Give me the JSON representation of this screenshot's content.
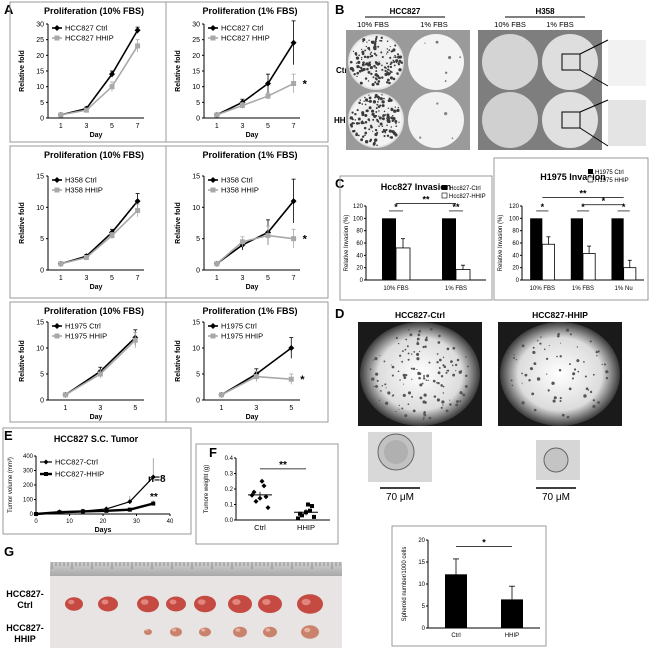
{
  "panels": {
    "A": "A",
    "B": "B",
    "C": "C",
    "D": "D",
    "E": "E",
    "F": "F",
    "G": "G"
  },
  "prolif": {
    "ylabel": "Relative fold",
    "xlabel": "Day",
    "star": "*",
    "charts": [
      {
        "title": "Proliferation (10% FBS)",
        "ticksX": [
          "1",
          "3",
          "5",
          "7"
        ],
        "ticksY": [
          "0",
          "5",
          "10",
          "15",
          "20",
          "25",
          "30"
        ],
        "ymax": 30,
        "xmax": 7,
        "s1": "HCC827 Ctrl",
        "s2": "HCC827 HHIP",
        "x": [
          1,
          3,
          5,
          7
        ],
        "v1": [
          1,
          3,
          14,
          28
        ],
        "v2": [
          1,
          2.5,
          10,
          23
        ],
        "e1": [
          0.3,
          0.5,
          1,
          1
        ],
        "e2": [
          0.3,
          0.5,
          1.5,
          2
        ],
        "star": false
      },
      {
        "title": "Proliferation (1% FBS)",
        "ticksX": [
          "1",
          "3",
          "5",
          "7"
        ],
        "ticksY": [
          "0",
          "5",
          "10",
          "15",
          "20",
          "25",
          "30"
        ],
        "ymax": 30,
        "xmax": 7,
        "s1": "HCC827 Ctrl",
        "s2": "HCC827 HHIP",
        "x": [
          1,
          3,
          5,
          7
        ],
        "v1": [
          1,
          5,
          11,
          24
        ],
        "v2": [
          1,
          4,
          7,
          11
        ],
        "e1": [
          0.3,
          1,
          3,
          7
        ],
        "e2": [
          0.3,
          1,
          1,
          3
        ],
        "star": true
      },
      {
        "title": "Proliferation (10% FBS)",
        "ticksX": [
          "1",
          "3",
          "5",
          "7"
        ],
        "ticksY": [
          "0",
          "5",
          "10",
          "15"
        ],
        "ymax": 15,
        "xmax": 7,
        "s1": "H358 Ctrl",
        "s2": "H358 HHIP",
        "x": [
          1,
          3,
          5,
          7
        ],
        "v1": [
          1,
          2.2,
          6,
          11
        ],
        "v2": [
          1,
          2,
          5.5,
          9.5
        ],
        "e1": [
          0.2,
          0.3,
          0.5,
          1.2
        ],
        "e2": [
          0.2,
          0.3,
          0.5,
          1
        ],
        "star": false
      },
      {
        "title": "Proliferation (1% FBS)",
        "ticksX": [
          "1",
          "3",
          "5",
          "7"
        ],
        "ticksY": [
          "0",
          "5",
          "10",
          "15"
        ],
        "ymax": 15,
        "xmax": 7,
        "s1": "H358 Ctrl",
        "s2": "H358 HHIP",
        "x": [
          1,
          3,
          5,
          7
        ],
        "v1": [
          1,
          4,
          6,
          11
        ],
        "v2": [
          1,
          4.5,
          5.5,
          5
        ],
        "e1": [
          0.2,
          0.8,
          2,
          3.5
        ],
        "e2": [
          0.2,
          0.8,
          1.5,
          1.5
        ],
        "star": true
      },
      {
        "title": "Proliferation (10% FBS)",
        "ticksX": [
          "1",
          "3",
          "5"
        ],
        "ticksY": [
          "0",
          "5",
          "10",
          "15"
        ],
        "ymax": 15,
        "xmax": 5,
        "s1": "H1975 Ctrl",
        "s2": "H1975 HHIP",
        "x": [
          1,
          3,
          5
        ],
        "v1": [
          1,
          5.5,
          12
        ],
        "v2": [
          1,
          5,
          11.5
        ],
        "e1": [
          0.2,
          0.8,
          1.5
        ],
        "e2": [
          0.2,
          0.8,
          1.5
        ],
        "star": false
      },
      {
        "title": "Proliferation (1% FBS)",
        "ticksX": [
          "1",
          "3",
          "5"
        ],
        "ticksY": [
          "0",
          "5",
          "10",
          "15"
        ],
        "ymax": 15,
        "xmax": 5,
        "s1": "H1975 Ctrl",
        "s2": "H1975 HHIP",
        "x": [
          1,
          3,
          5
        ],
        "v1": [
          1,
          5,
          10
        ],
        "v2": [
          1,
          4.5,
          4
        ],
        "e1": [
          0.2,
          1,
          2
        ],
        "e2": [
          0.2,
          1,
          1
        ],
        "star": true
      }
    ]
  },
  "colony": {
    "h1": "HCC827",
    "h2": "H358",
    "fbs10": "10% FBS",
    "fbs1": "1% FBS",
    "ctrl": "Ctrl",
    "hhip": "HHIP"
  },
  "invasion": {
    "ylabel": "Relative Invasion (%)",
    "ticksY": [
      "0",
      "20",
      "40",
      "60",
      "80",
      "100",
      "120"
    ],
    "c1": {
      "title": "Hcc827 Invasion",
      "leg1": "Hcc827-Ctrl",
      "leg2": "Hcc827-HHIP",
      "cats": [
        "10% FBS",
        "1% FBS"
      ],
      "ctrl": [
        100,
        100
      ],
      "hhip": [
        52,
        17
      ],
      "err": [
        15,
        7
      ],
      "sigInner": [
        "*",
        "**"
      ],
      "sigOuter": "**"
    },
    "c2": {
      "title": "H1975 Invasion",
      "leg1": "H1975 Ctrl",
      "leg2": "H1975 HHIP",
      "cats": [
        "10% FBS",
        "1% FBS",
        "1% Nu"
      ],
      "ctrl": [
        100,
        100,
        100
      ],
      "hhip": [
        58,
        43,
        20
      ],
      "err": [
        12,
        12,
        12
      ],
      "sigInner": [
        "*",
        "*",
        "*"
      ],
      "sigOuter1": "**",
      "sigOuter2": "*"
    }
  },
  "spheroid": {
    "t1": "HCC827-Ctrl",
    "t2": "HCC827-HHIP",
    "scale": "70 μM",
    "ylabel": "Spheroid number/1000 cells",
    "cats": [
      "Ctrl",
      "HHIP"
    ],
    "values": [
      12.2,
      6.5
    ],
    "err": [
      3.5,
      3
    ],
    "ticksY": [
      "0",
      "5",
      "10",
      "15",
      "20"
    ],
    "sig": "*"
  },
  "tumor": {
    "title": "HCC827 S.C. Tumor",
    "ylabel": "Tumor volume (mm³)",
    "xlabel": "Days",
    "s1": "HCC827-Ctrl",
    "s2": "HCC827-HHIP",
    "x": [
      0,
      7,
      14,
      21,
      28,
      35
    ],
    "v1": [
      0,
      15,
      20,
      35,
      85,
      255
    ],
    "v2": [
      0,
      12,
      18,
      22,
      30,
      72
    ],
    "ticksY": [
      "0",
      "100",
      "200",
      "300",
      "400"
    ],
    "ticksX": [
      "0",
      "10",
      "20",
      "30",
      "40"
    ],
    "n": "n=8",
    "sig": "**"
  },
  "weight": {
    "ylabel": "Tumore weight (g)",
    "cats": [
      "Ctrl",
      "HHIP"
    ],
    "ticksY": [
      "0.0",
      "0.1",
      "0.2",
      "0.3",
      "0.4"
    ],
    "ctrl": [
      0.16,
      0.12,
      0.14,
      0.22,
      0.08,
      0.18,
      0.25,
      0.15
    ],
    "hhip": [
      0.01,
      0.03,
      0.05,
      0.06,
      0.02,
      0.04,
      0.1,
      0.09
    ],
    "sig": "**"
  },
  "photo": {
    "ctrl_line1": "HCC827-",
    "ctrl_line2": "Ctrl",
    "hhip_line1": "HCC827-",
    "hhip_line2": "HHIP"
  }
}
